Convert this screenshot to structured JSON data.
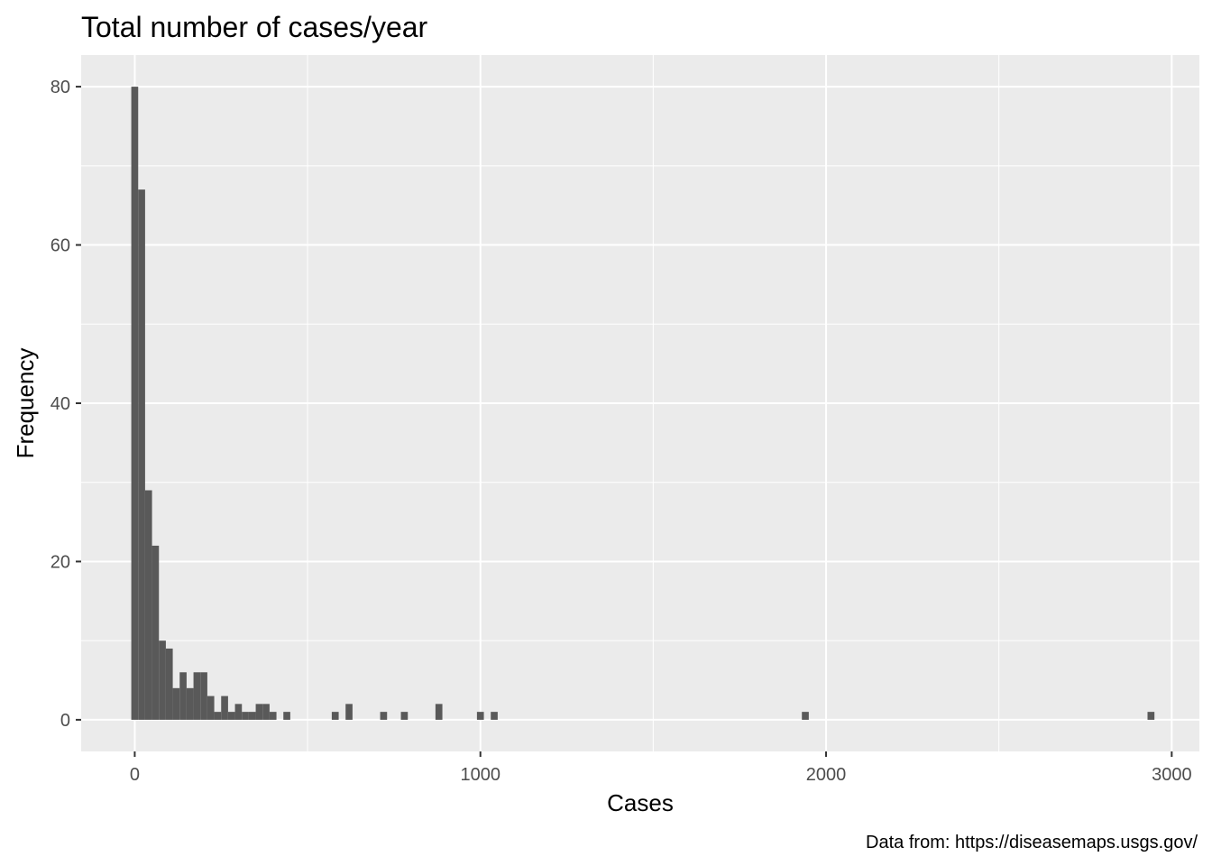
{
  "chart_data": {
    "type": "bar",
    "title": "Total number of cases/year",
    "xlabel": "Cases",
    "ylabel": "Frequency",
    "caption": "Data from: https://diseasemaps.usgs.gov/",
    "xlim": [
      -155,
      3080
    ],
    "ylim": [
      -4,
      84
    ],
    "x_ticks": [
      0,
      1000,
      2000,
      3000
    ],
    "x_tick_labels": [
      "0",
      "1000",
      "2000",
      "3000"
    ],
    "y_ticks": [
      0,
      20,
      40,
      60,
      80
    ],
    "y_tick_labels": [
      "0",
      "20",
      "40",
      "60",
      "80"
    ],
    "bin_width": 20,
    "bins": [
      {
        "x": 0,
        "count": 80
      },
      {
        "x": 20,
        "count": 67
      },
      {
        "x": 40,
        "count": 29
      },
      {
        "x": 60,
        "count": 22
      },
      {
        "x": 80,
        "count": 10
      },
      {
        "x": 100,
        "count": 9
      },
      {
        "x": 120,
        "count": 4
      },
      {
        "x": 140,
        "count": 6
      },
      {
        "x": 160,
        "count": 4
      },
      {
        "x": 180,
        "count": 6
      },
      {
        "x": 200,
        "count": 6
      },
      {
        "x": 220,
        "count": 3
      },
      {
        "x": 240,
        "count": 1
      },
      {
        "x": 260,
        "count": 3
      },
      {
        "x": 280,
        "count": 1
      },
      {
        "x": 300,
        "count": 2
      },
      {
        "x": 320,
        "count": 1
      },
      {
        "x": 340,
        "count": 1
      },
      {
        "x": 360,
        "count": 2
      },
      {
        "x": 380,
        "count": 2
      },
      {
        "x": 400,
        "count": 1
      },
      {
        "x": 440,
        "count": 1
      },
      {
        "x": 580,
        "count": 1
      },
      {
        "x": 620,
        "count": 2
      },
      {
        "x": 720,
        "count": 1
      },
      {
        "x": 780,
        "count": 1
      },
      {
        "x": 880,
        "count": 2
      },
      {
        "x": 1000,
        "count": 1
      },
      {
        "x": 1040,
        "count": 1
      },
      {
        "x": 1940,
        "count": 1
      },
      {
        "x": 2940,
        "count": 1
      }
    ],
    "grid": true,
    "colors": {
      "panel": "#ebebeb",
      "grid": "#ffffff",
      "bar": "#595959",
      "tick": "#333333"
    }
  }
}
